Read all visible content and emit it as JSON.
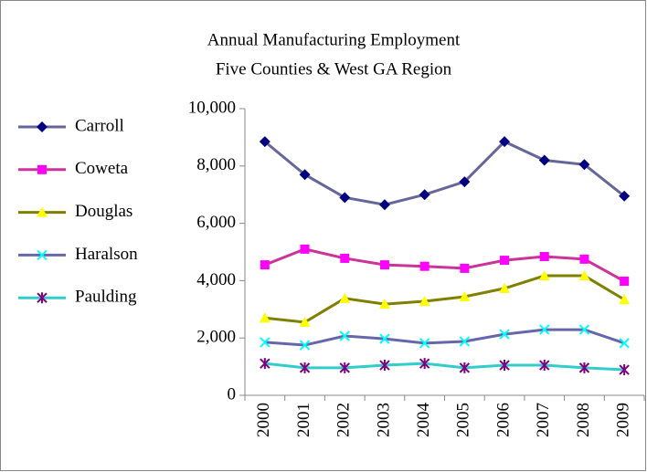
{
  "chart_data": {
    "type": "line",
    "title": [
      "Annual Manufacturing Employment",
      "Five Counties & West GA Region"
    ],
    "categories": [
      "2000",
      "2001",
      "2002",
      "2003",
      "2004",
      "2005",
      "2006",
      "2007",
      "2008",
      "2009"
    ],
    "series": [
      {
        "name": "Carroll",
        "color": "#666699",
        "marker": "diamond",
        "marker_color": "#000080",
        "values": [
          8850,
          7700,
          6900,
          6650,
          7000,
          7450,
          8850,
          8200,
          8050,
          6950
        ]
      },
      {
        "name": "Coweta",
        "color": "#cc3399",
        "marker": "square",
        "marker_color": "#ff00ff",
        "values": [
          4550,
          5100,
          4780,
          4550,
          4500,
          4430,
          4710,
          4840,
          4750,
          3980
        ]
      },
      {
        "name": "Douglas",
        "color": "#808000",
        "marker": "triangle",
        "marker_color": "#ffff00",
        "values": [
          2700,
          2550,
          3380,
          3180,
          3280,
          3440,
          3730,
          4170,
          4170,
          3340
        ]
      },
      {
        "name": "Haralson",
        "color": "#6666aa",
        "marker": "x",
        "marker_color": "#00ffff",
        "values": [
          1850,
          1750,
          2070,
          1970,
          1820,
          1880,
          2130,
          2290,
          2290,
          1820
        ]
      },
      {
        "name": "Paulding",
        "color": "#33cccc",
        "marker": "asterisk",
        "marker_color": "#800080",
        "values": [
          1110,
          960,
          960,
          1050,
          1110,
          960,
          1050,
          1050,
          960,
          890
        ]
      }
    ],
    "ylim": [
      0,
      10000
    ],
    "yticks": [
      0,
      {
        "value": 2000,
        "label": "2,000"
      },
      {
        "value": 4000,
        "label": "4,000"
      },
      {
        "value": 6000,
        "label": "6,000"
      },
      {
        "value": 8000,
        "label": "8,000"
      },
      {
        "value": 10000,
        "label": "10,000"
      }
    ],
    "grid": false,
    "legend": "left"
  }
}
